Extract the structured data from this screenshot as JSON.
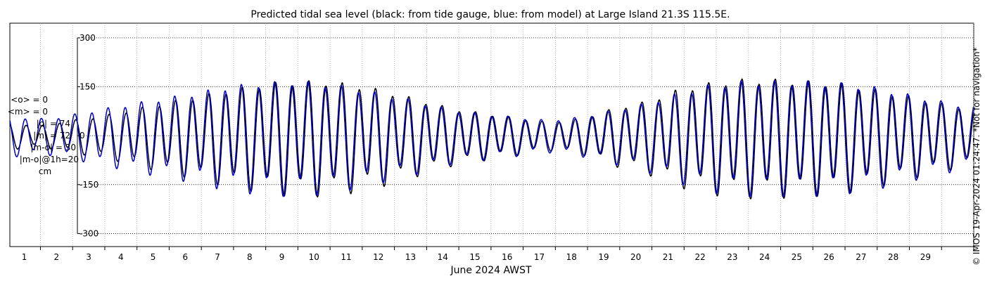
{
  "chart_data": {
    "type": "line",
    "title": "Predicted tidal sea level (black: from tide gauge, blue: from model) at Large Island 21.3S 115.5E.",
    "xlabel": "June 2024 AWST",
    "ylabel": "",
    "x_ticks": [
      "1",
      "2",
      "3",
      "4",
      "5",
      "6",
      "7",
      "8",
      "9",
      "10",
      "11",
      "12",
      "13",
      "14",
      "15",
      "16",
      "17",
      "18",
      "19",
      "20",
      "21",
      "22",
      "23",
      "24",
      "25",
      "26",
      "27",
      "28",
      "29"
    ],
    "y_ticks": [
      300,
      150,
      0,
      -150,
      -300
    ],
    "y_tick_labels": [
      "300",
      "150",
      "0",
      "-150",
      "-300"
    ],
    "xlim": [
      0.05,
      30.0
    ],
    "ylim": [
      -340,
      345
    ],
    "grid": true,
    "semidiurnal_cycles_per_day": 1.932,
    "series": [
      {
        "name": "tide gauge",
        "color": "#000000",
        "peak_days": [
          0.3,
          1.1,
          1.6,
          2.7,
          3.3,
          4.5,
          5.8,
          6.8,
          7.8,
          8.8,
          9.8,
          10.8,
          11.8,
          12.8,
          13.8,
          15.2,
          16.8,
          17.8,
          18.8,
          19.8,
          20.8,
          21.8,
          22.8,
          23.8,
          24.8,
          25.8,
          26.8,
          27.8,
          28.8,
          29.9
        ],
        "peak_amplitudes": [
          35,
          30,
          40,
          55,
          65,
          90,
          115,
          135,
          150,
          160,
          160,
          150,
          130,
          105,
          80,
          60,
          40,
          50,
          80,
          100,
          135,
          155,
          165,
          165,
          160,
          155,
          140,
          120,
          100,
          80
        ]
      },
      {
        "name": "model",
        "color": "#0000cc",
        "peak_days": [
          0.3,
          1.1,
          1.6,
          2.7,
          3.3,
          4.5,
          5.8,
          6.8,
          7.8,
          8.8,
          9.8,
          10.8,
          11.8,
          12.8,
          13.8,
          15.2,
          16.8,
          17.8,
          18.8,
          19.8,
          20.8,
          21.8,
          22.8,
          23.8,
          24.8,
          25.8,
          26.8,
          27.8,
          28.8,
          29.9
        ],
        "peak_amplitudes": [
          55,
          50,
          55,
          75,
          85,
          105,
          125,
          145,
          155,
          160,
          155,
          140,
          120,
          100,
          75,
          60,
          45,
          55,
          75,
          95,
          125,
          150,
          160,
          160,
          160,
          155,
          145,
          125,
          105,
          85
        ]
      }
    ]
  },
  "stats": {
    "lines": [
      "<o> = 0",
      "<m> = 0",
      "|o| = 74",
      "|m| = 72",
      "|m-o| = 30",
      "|m-o|@1h=20",
      "cm"
    ]
  },
  "watermark": "© IMOS 19-Apr-2024 01:24:47. *Not for navigation*"
}
